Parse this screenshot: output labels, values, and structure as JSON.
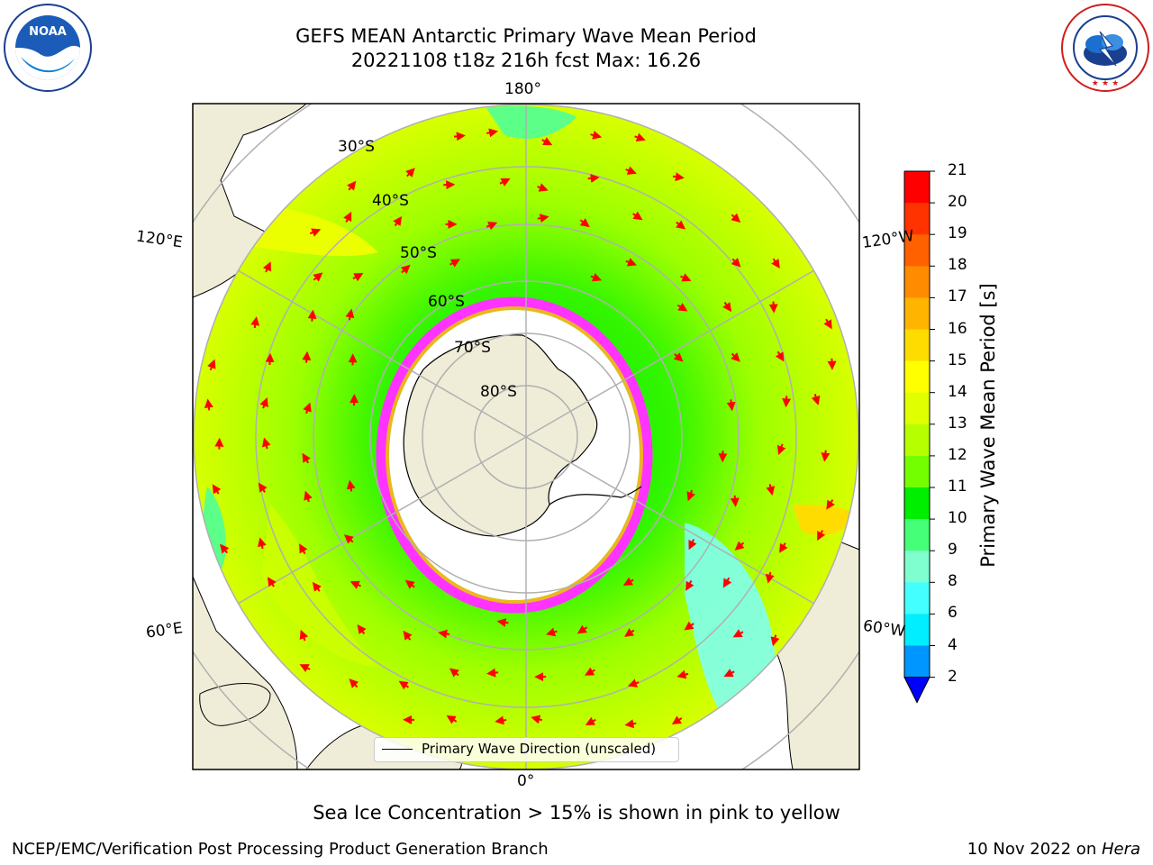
{
  "header": {
    "title_line1": "GEFS MEAN Antarctic Primary Wave Mean Period",
    "title_line2": "20221108 t18z 216h fcst   Max: 16.26"
  },
  "logos": {
    "noaa_text": "NOAA",
    "noaa_ring_text": "NATIONAL OCEANIC AND ATMOSPHERIC ADMINISTRATION · U.S. DEPARTMENT OF COMMERCE",
    "nws_ring_text": "NATIONAL WEATHER SERVICE"
  },
  "map": {
    "longitude_labels": {
      "top": "180°",
      "bottom": "0°",
      "upper_left": "120°E",
      "lower_left": "60°E",
      "upper_right": "120°W",
      "lower_right": "60°W"
    },
    "latitude_labels": [
      "30°S",
      "40°S",
      "50°S",
      "60°S",
      "70°S",
      "80°S"
    ],
    "legend_label": "Primary Wave Direction (unscaled)"
  },
  "colorbar": {
    "title": "Primary Wave Mean Period [s]",
    "ticks": [
      "21",
      "20",
      "19",
      "18",
      "17",
      "16",
      "15",
      "14",
      "13",
      "12",
      "11",
      "10",
      "9",
      "8",
      "6",
      "4",
      "2"
    ],
    "colors": [
      "#ff0000",
      "#ff3300",
      "#ff6000",
      "#ff8c00",
      "#ffb400",
      "#ffdc00",
      "#ffff00",
      "#e0ff00",
      "#b6ff00",
      "#74ff00",
      "#00ee00",
      "#44ff77",
      "#7fffcf",
      "#44ffff",
      "#00eeff",
      "#0096ff",
      "#0000ff"
    ]
  },
  "caption": "Sea Ice Concentration > 15% is shown in pink to yellow",
  "footer": {
    "left": "NCEP/EMC/Verification Post Processing Product Generation Branch",
    "right_date": "10 Nov 2022 on ",
    "right_machine": "Hera"
  }
}
